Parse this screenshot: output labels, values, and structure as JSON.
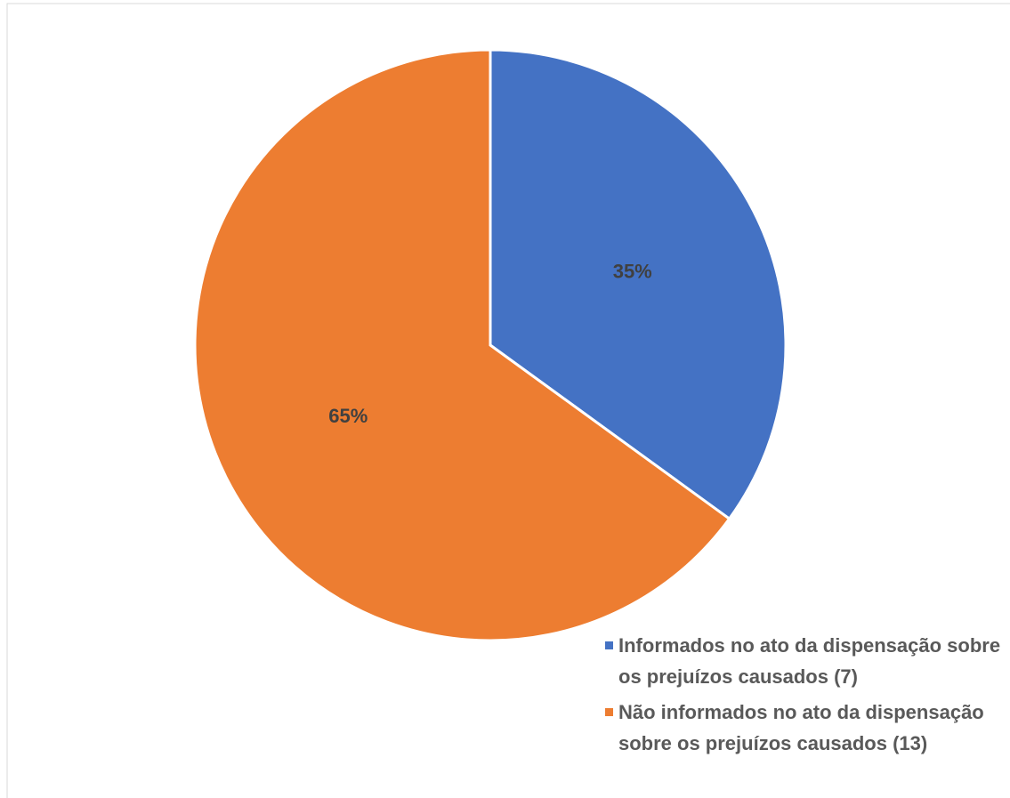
{
  "chart_data": {
    "type": "pie",
    "categories": [
      "Informados no ato da dispensação sobre os prejuízos causados (7)",
      "Não informados no ato da dispensação sobre os prejuízos causados (13)"
    ],
    "values": [
      35,
      65
    ],
    "value_labels": [
      "35%",
      "65%"
    ],
    "colors": [
      "#4472c4",
      "#ed7d31"
    ],
    "legend": "bottom-right"
  }
}
